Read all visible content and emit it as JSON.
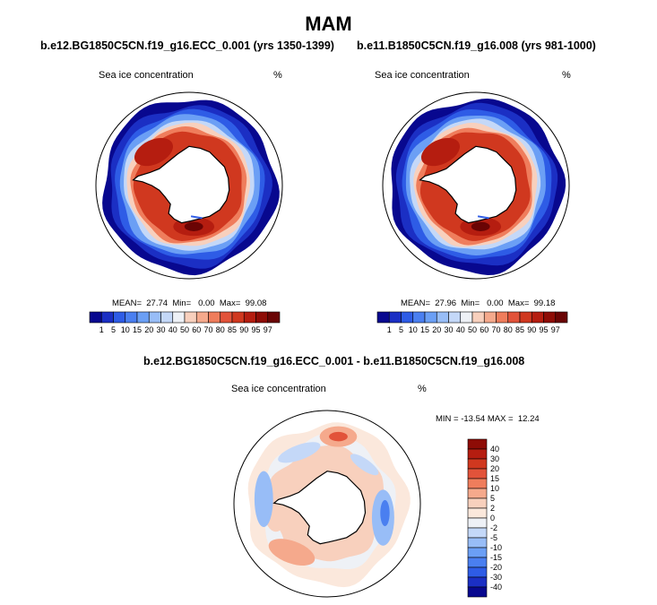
{
  "main_title": "MAM",
  "panels": [
    {
      "title": "b.e12.BG1850C5CN.f19_g16.ECC_0.001 (yrs 1350-1399)",
      "variable": "Sea ice concentration",
      "units": "%",
      "stats": "MEAN=  27.74  Min=   0.00  Max=  99.08"
    },
    {
      "title": "b.e11.B1850C5CN.f19_g16.008 (yrs 981-1000)",
      "variable": "Sea ice concentration",
      "units": "%",
      "stats": "MEAN=  27.96  Min=   0.00  Max=  99.18"
    },
    {
      "title": "b.e12.BG1850C5CN.f19_g16.ECC_0.001 - b.e11.B1850C5CN.f19_g16.008",
      "variable": "Sea ice concentration",
      "units": "%",
      "stats": "MIN = -13.54 MAX =  12.24"
    }
  ],
  "colorbar_abs": {
    "labels": [
      "1",
      "5",
      "10",
      "15",
      "20",
      "30",
      "40",
      "50",
      "60",
      "70",
      "80",
      "85",
      "90",
      "95",
      "97"
    ],
    "colors": [
      "#08088f",
      "#1b2fc4",
      "#2e5ce6",
      "#4a7ff0",
      "#6b9ff5",
      "#98bdf7",
      "#c4d8f8",
      "#eef1f6",
      "#f8d0bd",
      "#f5a98c",
      "#ef7d5c",
      "#e2533a",
      "#d0381f",
      "#b51d10",
      "#8e0c06",
      "#6a0404"
    ]
  },
  "colorbar_diff": {
    "labels": [
      "40",
      "30",
      "20",
      "15",
      "10",
      "5",
      "2",
      "0",
      "-2",
      "-5",
      "-10",
      "-15",
      "-20",
      "-30",
      "-40"
    ],
    "colors": [
      "#8e0c06",
      "#b51d10",
      "#d0381f",
      "#e2533a",
      "#ef7d5c",
      "#f5a98c",
      "#f8d0bd",
      "#fbe8dc",
      "#eef1f6",
      "#c4d8f8",
      "#98bdf7",
      "#6b9ff5",
      "#4a7ff0",
      "#2e5ce6",
      "#1b2fc4",
      "#08088f"
    ]
  },
  "chart_data": [
    {
      "type": "heatmap",
      "projection": "south-polar-stereographic",
      "title": "b.e12.BG1850C5CN.f19_g16.ECC_0.001 (yrs 1350-1399)",
      "variable": "Sea ice concentration",
      "units": "%",
      "mean": 27.74,
      "min": 0.0,
      "max": 99.08,
      "levels": [
        1,
        5,
        10,
        15,
        20,
        30,
        40,
        50,
        60,
        70,
        80,
        85,
        90,
        95,
        97
      ]
    },
    {
      "type": "heatmap",
      "projection": "south-polar-stereographic",
      "title": "b.e11.B1850C5CN.f19_g16.008 (yrs 981-1000)",
      "variable": "Sea ice concentration",
      "units": "%",
      "mean": 27.96,
      "min": 0.0,
      "max": 99.18,
      "levels": [
        1,
        5,
        10,
        15,
        20,
        30,
        40,
        50,
        60,
        70,
        80,
        85,
        90,
        95,
        97
      ]
    },
    {
      "type": "heatmap",
      "projection": "south-polar-stereographic",
      "title": "b.e12.BG1850C5CN.f19_g16.ECC_0.001 - b.e11.B1850C5CN.f19_g16.008",
      "variable": "Sea ice concentration",
      "units": "%",
      "min": -13.54,
      "max": 12.24,
      "levels": [
        -40,
        -30,
        -20,
        -15,
        -10,
        -5,
        -2,
        0,
        2,
        5,
        10,
        15,
        20,
        30,
        40
      ]
    }
  ]
}
